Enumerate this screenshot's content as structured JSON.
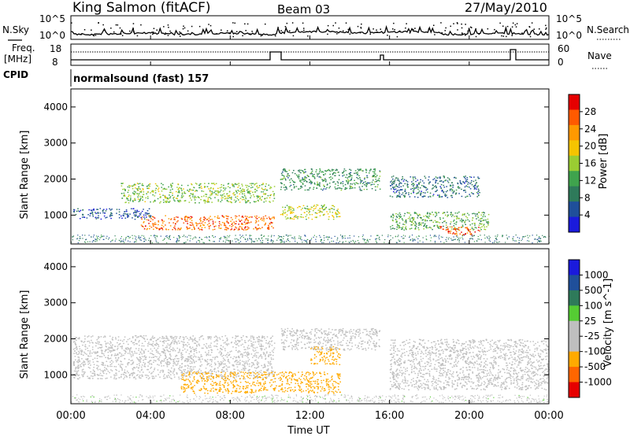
{
  "header": {
    "station": "King Salmon (fitACF)",
    "beam": "Beam 03",
    "date": "27/May/2010"
  },
  "noise_panel": {
    "left_label": "N.Sky",
    "right_label": "N.Search",
    "tick_top": "10^5",
    "tick_bottom": "10^0"
  },
  "freq_panel": {
    "left_label_1": "Freq.",
    "left_label_2": "[MHz]",
    "right_label": "Nave",
    "left_tick_top": "18",
    "left_tick_bottom": "8",
    "right_tick_top": "60",
    "right_tick_bottom": "0"
  },
  "cpid": {
    "label": "CPID",
    "program": "normalsound (fast) 157"
  },
  "x_axis": {
    "label": "Time UT",
    "ticks": [
      "00:00",
      "04:00",
      "08:00",
      "12:00",
      "16:00",
      "20:00",
      "00:00"
    ]
  },
  "colors": {
    "power_scale": [
      "#1a1adc",
      "#1f4f9a",
      "#2e7a5a",
      "#3fa34d",
      "#9acd32",
      "#f5c400",
      "#ff9900",
      "#ff5a00",
      "#e60000"
    ],
    "velocity_scale": [
      "#1a1adc",
      "#1f4f9a",
      "#2e7a5a",
      "#55cc33",
      "#bfbfbf",
      "#bfbfbf",
      "#ffaa00",
      "#ff6600",
      "#e60000"
    ]
  },
  "chart_data": [
    {
      "type": "heatmap",
      "title": "",
      "xlabel": "",
      "ylabel": "Slant Range [km]",
      "ylim": [
        200,
        4500
      ],
      "yticks": [
        "1000",
        "2000",
        "3000",
        "4000"
      ],
      "xlim_hours": [
        0,
        24
      ],
      "colorbar": {
        "label": "Power [dB]",
        "ticks": [
          "4",
          "8",
          "12",
          "16",
          "20",
          "24",
          "28"
        ],
        "range": [
          0,
          30
        ]
      },
      "regions": [
        {
          "from_hour": 0.1,
          "to_hour": 4.0,
          "range_km": [
            900,
            1200
          ],
          "value_db": 5
        },
        {
          "from_hour": 2.5,
          "to_hour": 10.2,
          "range_km": [
            1350,
            1900
          ],
          "value_db": 14
        },
        {
          "from_hour": 3.5,
          "to_hour": 10.2,
          "range_km": [
            600,
            1000
          ],
          "value_db": 24
        },
        {
          "from_hour": 10.5,
          "to_hour": 13.5,
          "range_km": [
            900,
            1300
          ],
          "value_db": 16
        },
        {
          "from_hour": 10.5,
          "to_hour": 15.5,
          "range_km": [
            1700,
            2300
          ],
          "value_db": 10
        },
        {
          "from_hour": 16.0,
          "to_hour": 20.5,
          "range_km": [
            1500,
            2100
          ],
          "value_db": 7
        },
        {
          "from_hour": 16.0,
          "to_hour": 21.0,
          "range_km": [
            600,
            1100
          ],
          "value_db": 12
        },
        {
          "from_hour": 18.5,
          "to_hour": 20.5,
          "range_km": [
            450,
            700
          ],
          "value_db": 26
        }
      ]
    },
    {
      "type": "heatmap",
      "title": "",
      "xlabel": "Time UT",
      "ylabel": "Slant Range [km]",
      "ylim": [
        200,
        4500
      ],
      "yticks": [
        "1000",
        "2000",
        "3000",
        "4000"
      ],
      "xlim_hours": [
        0,
        24
      ],
      "colorbar": {
        "label": "Velocity [m s^-1]",
        "ticks": [
          "1000",
          "500",
          "100",
          "25",
          "-25",
          "-100",
          "-500",
          "-1000"
        ],
        "range": [
          -1000,
          1000
        ]
      },
      "regions": [
        {
          "from_hour": 0.1,
          "to_hour": 10.2,
          "range_km": [
            900,
            2100
          ],
          "value_ms": 0
        },
        {
          "from_hour": 5.5,
          "to_hour": 13.5,
          "range_km": [
            500,
            1100
          ],
          "value_ms": -150
        },
        {
          "from_hour": 12.0,
          "to_hour": 13.5,
          "range_km": [
            1300,
            1800
          ],
          "value_ms": -300
        },
        {
          "from_hour": 10.5,
          "to_hour": 15.5,
          "range_km": [
            1700,
            2300
          ],
          "value_ms": 0
        },
        {
          "from_hour": 16.0,
          "to_hour": 24.0,
          "range_km": [
            600,
            2000
          ],
          "value_ms": 0
        }
      ]
    }
  ]
}
